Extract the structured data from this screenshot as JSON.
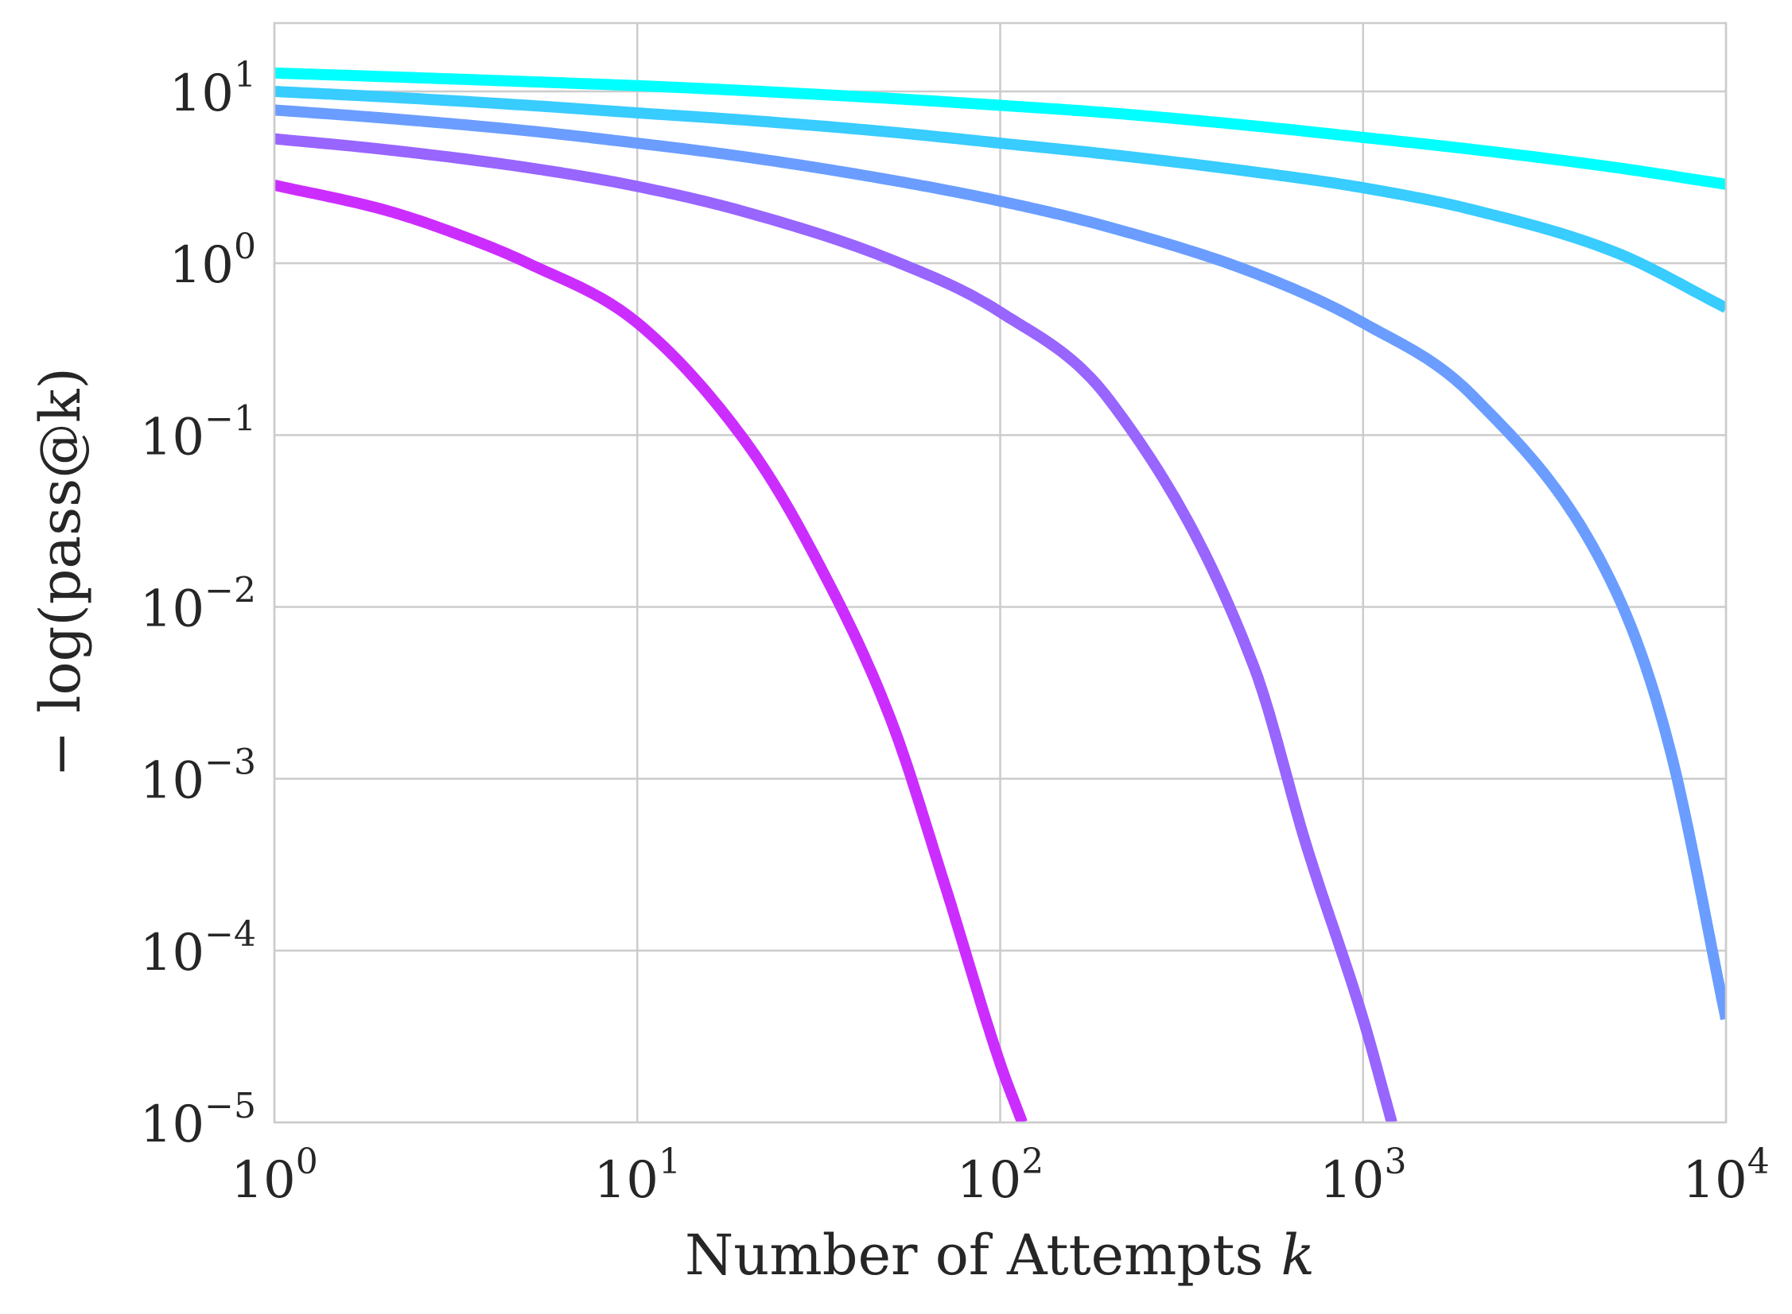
{
  "chart_data": {
    "type": "line",
    "title": "",
    "xlabel": "Number of Attempts",
    "xlabel_var": "k",
    "ylabel": "− log(pass@k)",
    "xscale": "log",
    "yscale": "log",
    "xlim": [
      1,
      10000
    ],
    "ylim": [
      1e-05,
      25
    ],
    "grid": true,
    "legend": "none",
    "xticks": [
      {
        "value": 1,
        "base": "10",
        "exp": "0"
      },
      {
        "value": 10,
        "base": "10",
        "exp": "1"
      },
      {
        "value": 100,
        "base": "10",
        "exp": "2"
      },
      {
        "value": 1000,
        "base": "10",
        "exp": "3"
      },
      {
        "value": 10000,
        "base": "10",
        "exp": "4"
      }
    ],
    "yticks": [
      {
        "value": 10,
        "base": "10",
        "exp": "1"
      },
      {
        "value": 1,
        "base": "10",
        "exp": "0"
      },
      {
        "value": 0.1,
        "base": "10",
        "exp": "−1"
      },
      {
        "value": 0.01,
        "base": "10",
        "exp": "−2"
      },
      {
        "value": 0.001,
        "base": "10",
        "exp": "−3"
      },
      {
        "value": 0.0001,
        "base": "10",
        "exp": "−4"
      },
      {
        "value": 1e-05,
        "base": "10",
        "exp": "−5"
      }
    ],
    "series": [
      {
        "color": "#00ffff",
        "x": [
          1,
          2,
          5,
          10,
          20,
          50,
          100,
          200,
          500,
          1000,
          2000,
          5000,
          10000
        ],
        "y": [
          12.8,
          12.2,
          11.4,
          10.8,
          10.1,
          9.1,
          8.3,
          7.5,
          6.3,
          5.4,
          4.6,
          3.6,
          2.88
        ]
      },
      {
        "color": "#38ccff",
        "x": [
          1,
          2,
          5,
          10,
          20,
          50,
          100,
          200,
          500,
          1000,
          2000,
          5000,
          10000
        ],
        "y": [
          10.0,
          9.3,
          8.3,
          7.5,
          6.8,
          5.8,
          5.0,
          4.3,
          3.4,
          2.75,
          2.05,
          1.15,
          0.55
        ]
      },
      {
        "color": "#6a9dff",
        "x": [
          1,
          2,
          5,
          10,
          20,
          50,
          100,
          200,
          500,
          1000,
          2000,
          5000,
          7000,
          10000
        ],
        "y": [
          7.8,
          7.0,
          5.9,
          5.0,
          4.15,
          3.05,
          2.3,
          1.62,
          0.88,
          0.45,
          0.17,
          0.012,
          0.0015,
          4e-05
        ]
      },
      {
        "color": "#9865ff",
        "x": [
          1,
          2,
          5,
          10,
          20,
          50,
          100,
          200,
          500,
          700,
          1000,
          1200
        ],
        "y": [
          5.3,
          4.6,
          3.6,
          2.8,
          1.98,
          1.05,
          0.52,
          0.16,
          0.0045,
          0.0004,
          4e-05,
          1e-05
        ]
      },
      {
        "color": "#cc2dff",
        "x": [
          1,
          2,
          3,
          5,
          10,
          20,
          30,
          50,
          70,
          100,
          115
        ],
        "y": [
          2.85,
          2.05,
          1.55,
          1.0,
          0.45,
          0.09,
          0.022,
          0.0022,
          0.00025,
          2.2e-05,
          1e-05
        ]
      }
    ]
  }
}
